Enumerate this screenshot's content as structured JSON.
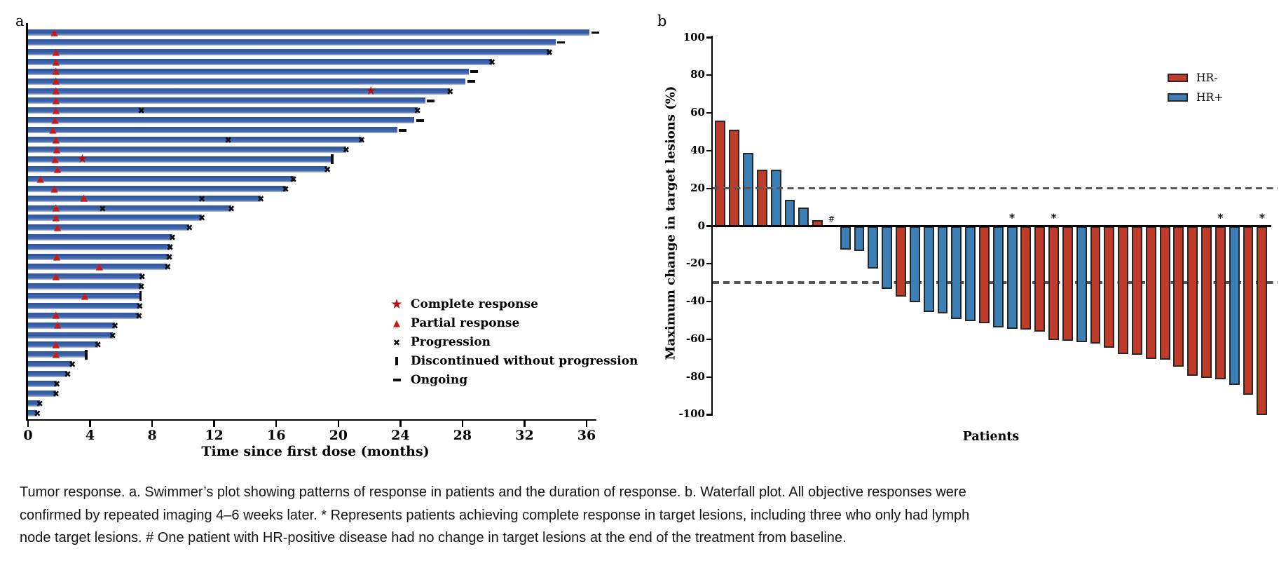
{
  "figure_labels": {
    "a": "a",
    "b": "b"
  },
  "caption_lines": [
    "Tumor response. a. Swimmer’s plot showing patterns of response in patients and the duration of response. b. Waterfall plot. All objective responses were",
    "confirmed by repeated imaging 4–6 weeks later. * Represents patients achieving complete response in target lesions, including three who only had lymph",
    "node target lesions. # One patient with HR-positive disease had no change in target lesions at the end of the treatment from baseline."
  ],
  "chart_data": [
    {
      "type": "swimmer",
      "xlabel": "Time since first dose (months)",
      "x_ticks": [
        0,
        4,
        8,
        12,
        16,
        20,
        24,
        28,
        32,
        36
      ],
      "xlim": [
        0,
        37
      ],
      "bar_color": "#3a62a9",
      "legend": [
        {
          "symbol": "star",
          "label": "Complete response",
          "color": "#b50d0d"
        },
        {
          "symbol": "triangle",
          "label": "Partial response",
          "color": "#cb1a15"
        },
        {
          "symbol": "cross",
          "label": "Progression",
          "color": "#0d0d0d"
        },
        {
          "symbol": "vbar",
          "label": "Discontinued without progression",
          "color": "#0d0d0d"
        },
        {
          "symbol": "dash",
          "label": "Ongoing",
          "color": "#0d0d0d"
        }
      ],
      "patients": [
        {
          "months": 36.2,
          "end": "ongoing",
          "pr": 1.7
        },
        {
          "months": 34.0,
          "end": "ongoing"
        },
        {
          "months": 33.6,
          "end": "progression",
          "pr": 1.8
        },
        {
          "months": 29.9,
          "end": "progression",
          "pr": 1.8
        },
        {
          "months": 28.4,
          "end": "ongoing",
          "pr": 1.8
        },
        {
          "months": 28.2,
          "end": "ongoing",
          "pr": 1.8
        },
        {
          "months": 27.2,
          "end": "progression",
          "pr": 1.8,
          "cr": 22.1
        },
        {
          "months": 25.6,
          "end": "ongoing",
          "pr": 1.8
        },
        {
          "months": 25.1,
          "end": "progression",
          "pr": 1.8,
          "prog_marks": [
            7.3
          ]
        },
        {
          "months": 24.9,
          "end": "ongoing",
          "pr": 1.75
        },
        {
          "months": 23.8,
          "end": "ongoing",
          "pr": 1.6
        },
        {
          "months": 21.5,
          "end": "progression",
          "pr": 1.8,
          "prog_marks": [
            12.9
          ]
        },
        {
          "months": 20.5,
          "end": "progression",
          "pr": 1.85
        },
        {
          "months": 19.6,
          "end": "discontinued",
          "pr": 1.75,
          "cr": 3.5
        },
        {
          "months": 19.3,
          "end": "progression",
          "pr": 1.9
        },
        {
          "months": 17.1,
          "end": "progression",
          "pr": 0.8
        },
        {
          "months": 16.6,
          "end": "progression",
          "pr": 1.7
        },
        {
          "months": 15.0,
          "end": "progression",
          "pr": 3.6,
          "prog_marks": [
            11.2
          ]
        },
        {
          "months": 13.1,
          "end": "progression",
          "pr": 1.8,
          "prog_marks": [
            4.8
          ]
        },
        {
          "months": 11.2,
          "end": "progression",
          "pr": 1.8
        },
        {
          "months": 10.4,
          "end": "progression",
          "pr": 1.9
        },
        {
          "months": 9.3,
          "end": "progression"
        },
        {
          "months": 9.15,
          "end": "progression"
        },
        {
          "months": 9.1,
          "end": "progression",
          "pr": 1.85
        },
        {
          "months": 9.0,
          "end": "progression",
          "pr": 4.6
        },
        {
          "months": 7.35,
          "end": "progression",
          "pr": 1.8
        },
        {
          "months": 7.3,
          "end": "progression"
        },
        {
          "months": 7.25,
          "end": "discontinued",
          "pr": 3.65
        },
        {
          "months": 7.2,
          "end": "progression"
        },
        {
          "months": 7.15,
          "end": "progression",
          "pr": 1.8
        },
        {
          "months": 5.6,
          "end": "progression",
          "pr": 1.9
        },
        {
          "months": 5.45,
          "end": "progression"
        },
        {
          "months": 4.5,
          "end": "progression",
          "pr": 1.8
        },
        {
          "months": 3.75,
          "end": "discontinued",
          "pr": 1.8
        },
        {
          "months": 2.85,
          "end": "progression"
        },
        {
          "months": 2.55,
          "end": "progression"
        },
        {
          "months": 1.85,
          "end": "progression"
        },
        {
          "months": 1.8,
          "end": "progression"
        },
        {
          "months": 0.75,
          "end": "progression"
        },
        {
          "months": 0.6,
          "end": "progression"
        }
      ]
    },
    {
      "type": "waterfall",
      "xlabel": "Patients",
      "ylabel": "Maximum change in target lesions (%)",
      "y_ticks": [
        100,
        80,
        60,
        40,
        20,
        0,
        -20,
        -40,
        -60,
        -80,
        -100
      ],
      "ylim": [
        -100,
        100
      ],
      "ref_lines": [
        20,
        -30
      ],
      "legend": [
        {
          "label": "HR-",
          "color": "#c13b2b"
        },
        {
          "label": "HR+",
          "color": "#3c7eb6"
        }
      ],
      "bars": [
        {
          "value": 56,
          "group": "HR-"
        },
        {
          "value": 51,
          "group": "HR-"
        },
        {
          "value": 39,
          "group": "HR+"
        },
        {
          "value": 30,
          "group": "HR-"
        },
        {
          "value": 30,
          "group": "HR+"
        },
        {
          "value": 14,
          "group": "HR+"
        },
        {
          "value": 10,
          "group": "HR+"
        },
        {
          "value": 3,
          "group": "HR-"
        },
        {
          "value": 0,
          "group": "HR+",
          "annotation": "#"
        },
        {
          "value": -12,
          "group": "HR+"
        },
        {
          "value": -13,
          "group": "HR+"
        },
        {
          "value": -22,
          "group": "HR+"
        },
        {
          "value": -33,
          "group": "HR+"
        },
        {
          "value": -37,
          "group": "HR-"
        },
        {
          "value": -40,
          "group": "HR+"
        },
        {
          "value": -45,
          "group": "HR+"
        },
        {
          "value": -46,
          "group": "HR+"
        },
        {
          "value": -49,
          "group": "HR+"
        },
        {
          "value": -50,
          "group": "HR+"
        },
        {
          "value": -51,
          "group": "HR-"
        },
        {
          "value": -53.5,
          "group": "HR+"
        },
        {
          "value": -54,
          "group": "HR+",
          "annotation": "*"
        },
        {
          "value": -54.5,
          "group": "HR-"
        },
        {
          "value": -55.5,
          "group": "HR-"
        },
        {
          "value": -60,
          "group": "HR-",
          "annotation": "*"
        },
        {
          "value": -60.5,
          "group": "HR-"
        },
        {
          "value": -61,
          "group": "HR+"
        },
        {
          "value": -62,
          "group": "HR-"
        },
        {
          "value": -64,
          "group": "HR-"
        },
        {
          "value": -67.5,
          "group": "HR-"
        },
        {
          "value": -68,
          "group": "HR-"
        },
        {
          "value": -70,
          "group": "HR-"
        },
        {
          "value": -70.5,
          "group": "HR-"
        },
        {
          "value": -74,
          "group": "HR-"
        },
        {
          "value": -79,
          "group": "HR-"
        },
        {
          "value": -80,
          "group": "HR-"
        },
        {
          "value": -81,
          "group": "HR-",
          "annotation": "*"
        },
        {
          "value": -84,
          "group": "HR+"
        },
        {
          "value": -89,
          "group": "HR-"
        },
        {
          "value": -100,
          "group": "HR-",
          "annotation": "*"
        }
      ]
    }
  ]
}
